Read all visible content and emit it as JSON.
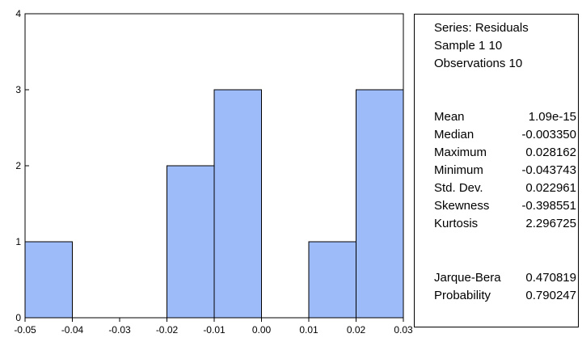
{
  "chart_data": {
    "type": "bar",
    "bins": [
      {
        "from": -0.05,
        "to": -0.04,
        "count": 1
      },
      {
        "from": -0.04,
        "to": -0.03,
        "count": 0
      },
      {
        "from": -0.03,
        "to": -0.02,
        "count": 0
      },
      {
        "from": -0.02,
        "to": -0.01,
        "count": 2
      },
      {
        "from": -0.01,
        "to": 0.0,
        "count": 3
      },
      {
        "from": 0.0,
        "to": 0.01,
        "count": 0
      },
      {
        "from": 0.01,
        "to": 0.02,
        "count": 1
      },
      {
        "from": 0.02,
        "to": 0.03,
        "count": 3
      }
    ],
    "xlim": [
      -0.05,
      0.03
    ],
    "ylim": [
      0,
      4
    ],
    "xticks": [
      "-0.05",
      "-0.04",
      "-0.03",
      "-0.02",
      "-0.01",
      "0.00",
      "0.01",
      "0.02",
      "0.03"
    ],
    "yticks": [
      "0",
      "1",
      "2",
      "3",
      "4"
    ],
    "bar_color": "#9dbbf8",
    "grid": false
  },
  "stats": {
    "series": "Series: Residuals",
    "sample": "Sample 1 10",
    "observations": "Observations 10",
    "rows": [
      {
        "label": "Mean",
        "value": "1.09e-15"
      },
      {
        "label": "Median",
        "value": "-0.003350"
      },
      {
        "label": "Maximum",
        "value": "0.028162"
      },
      {
        "label": "Minimum",
        "value": "-0.043743"
      },
      {
        "label": "Std. Dev.",
        "value": "0.022961"
      },
      {
        "label": "Skewness",
        "value": "-0.398551"
      },
      {
        "label": "Kurtosis",
        "value": "2.296725"
      }
    ],
    "test_rows": [
      {
        "label": "Jarque-Bera",
        "value": "0.470819"
      },
      {
        "label": "Probability",
        "value": "0.790247"
      }
    ]
  }
}
